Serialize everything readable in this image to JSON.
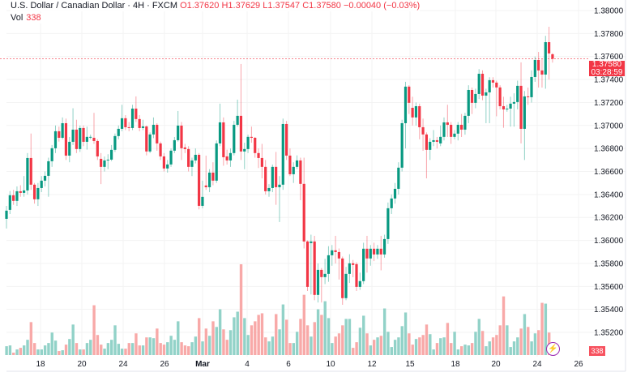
{
  "header": {
    "symbol": "U.S. Dollar / Canadian Dollar · 4H · FXCM",
    "open": "O1.37620",
    "high": "H1.37629",
    "low": "L1.37547",
    "close": "C1.37580",
    "change": "−0.00040 (−0.03%)",
    "vol_label": "Vol",
    "vol_value": "338"
  },
  "last_price": {
    "price": "1.37580",
    "countdown": "03:28:59"
  },
  "last_volume": "338",
  "colors": {
    "up": "#089981",
    "down": "#f23645",
    "vol_up": "#92d2c8",
    "vol_down": "#f8a9a8",
    "grid": "#f3f3f3",
    "price_line": "#f23645"
  },
  "icons": {
    "replay": "lightning-icon"
  },
  "chart_data": {
    "type": "candlestick",
    "title": "U.S. Dollar / Canadian Dollar · 4H · FXCM",
    "ylim": [
      1.3508,
      1.3809
    ],
    "y_ticks": [
      "1.38000",
      "1.37800",
      "1.37600",
      "1.37400",
      "1.37200",
      "1.37000",
      "1.36800",
      "1.36600",
      "1.36400",
      "1.36200",
      "1.36000",
      "1.35800",
      "1.35600",
      "1.35400",
      "1.35200"
    ],
    "x_ticks": [
      "18",
      "20",
      "24",
      "26",
      "Mar",
      "4",
      "6",
      "10",
      "12",
      "15",
      "18",
      "20",
      "24",
      "26"
    ],
    "grid": true,
    "ohlc": [
      [
        1.36188,
        1.363,
        1.36104,
        1.36259
      ],
      [
        1.36266,
        1.3643,
        1.3623,
        1.36393
      ],
      [
        1.36393,
        1.3644,
        1.3631,
        1.36344
      ],
      [
        1.36344,
        1.3647,
        1.363,
        1.36428
      ],
      [
        1.36428,
        1.3648,
        1.3638,
        1.36414
      ],
      [
        1.36414,
        1.3656,
        1.3638,
        1.36435
      ],
      [
        1.36435,
        1.3676,
        1.364,
        1.36717
      ],
      [
        1.36717,
        1.3693,
        1.3644,
        1.36485
      ],
      [
        1.36485,
        1.365,
        1.3632,
        1.36358
      ],
      [
        1.36358,
        1.365,
        1.363,
        1.36456
      ],
      [
        1.36456,
        1.3656,
        1.3642,
        1.3652
      ],
      [
        1.3652,
        1.366,
        1.3647,
        1.36562
      ],
      [
        1.36562,
        1.3672,
        1.3638,
        1.36689
      ],
      [
        1.36689,
        1.3683,
        1.3664,
        1.36802
      ],
      [
        1.36802,
        1.37,
        1.3676,
        1.3695
      ],
      [
        1.3695,
        1.3699,
        1.3686,
        1.36893
      ],
      [
        1.36893,
        1.3707,
        1.3688,
        1.3702
      ],
      [
        1.3702,
        1.3706,
        1.367,
        1.36738
      ],
      [
        1.36738,
        1.369,
        1.3668,
        1.36858
      ],
      [
        1.36858,
        1.3715,
        1.3683,
        1.36964
      ],
      [
        1.36964,
        1.3705,
        1.3676,
        1.36795
      ],
      [
        1.36795,
        1.37,
        1.3677,
        1.36978
      ],
      [
        1.36978,
        1.37,
        1.3682,
        1.36858
      ],
      [
        1.36858,
        1.3699,
        1.3679,
        1.36901
      ],
      [
        1.36901,
        1.3692,
        1.3688,
        1.36901
      ],
      [
        1.36893,
        1.3711,
        1.3684,
        1.36865
      ],
      [
        1.36865,
        1.3688,
        1.367,
        1.36731
      ],
      [
        1.3671,
        1.3676,
        1.3649,
        1.3664
      ],
      [
        1.3664,
        1.3673,
        1.366,
        1.36696
      ],
      [
        1.36696,
        1.3675,
        1.3662,
        1.36703
      ],
      [
        1.36703,
        1.3683,
        1.3669,
        1.36788
      ],
      [
        1.36788,
        1.3693,
        1.3677,
        1.36908
      ],
      [
        1.36908,
        1.37,
        1.3688,
        1.36971
      ],
      [
        1.36971,
        1.3718,
        1.3695,
        1.37063
      ],
      [
        1.37063,
        1.3709,
        1.3696,
        1.36985
      ],
      [
        1.36985,
        1.3703,
        1.3695,
        1.36978
      ],
      [
        1.36978,
        1.3718,
        1.3696,
        1.37147
      ],
      [
        1.37147,
        1.37253,
        1.3703,
        1.37056
      ],
      [
        1.37056,
        1.3709,
        1.3695,
        1.36978
      ],
      [
        1.36978,
        1.3705,
        1.3696,
        1.36992
      ],
      [
        1.36992,
        1.37,
        1.3674,
        1.36774
      ],
      [
        1.36774,
        1.3694,
        1.3676,
        1.36922
      ],
      [
        1.36922,
        1.3707,
        1.3689,
        1.37006
      ],
      [
        1.37006,
        1.3702,
        1.3678,
        1.36844
      ],
      [
        1.36844,
        1.3686,
        1.367,
        1.36731
      ],
      [
        1.36731,
        1.3676,
        1.366,
        1.36626
      ],
      [
        1.36626,
        1.367,
        1.3659,
        1.36661
      ],
      [
        1.36661,
        1.368,
        1.3664,
        1.36781
      ],
      [
        1.36781,
        1.369,
        1.3676,
        1.36872
      ],
      [
        1.36872,
        1.37126,
        1.3686,
        1.36999
      ],
      [
        1.36999,
        1.3703,
        1.367,
        1.36802
      ],
      [
        1.36809,
        1.3684,
        1.3676,
        1.36795
      ],
      [
        1.36795,
        1.3682,
        1.366,
        1.3664
      ],
      [
        1.3664,
        1.3672,
        1.3656,
        1.36696
      ],
      [
        1.36696,
        1.368,
        1.3667,
        1.36745
      ],
      [
        1.36745,
        1.3676,
        1.3627,
        1.36301
      ],
      [
        1.36301,
        1.3652,
        1.3628,
        1.36379
      ],
      [
        1.36478,
        1.36738,
        1.3644,
        1.36463
      ],
      [
        1.36463,
        1.3662,
        1.3642,
        1.3659
      ],
      [
        1.3659,
        1.3668,
        1.3648,
        1.3652
      ],
      [
        1.3652,
        1.3687,
        1.365,
        1.36844
      ],
      [
        1.36844,
        1.3719,
        1.3682,
        1.37027
      ],
      [
        1.37027,
        1.3707,
        1.3665,
        1.36724
      ],
      [
        1.36731,
        1.3679,
        1.3666,
        1.36696
      ],
      [
        1.36696,
        1.368,
        1.3664,
        1.3676
      ],
      [
        1.3676,
        1.3704,
        1.3674,
        1.37006
      ],
      [
        1.37006,
        1.37225,
        1.3699,
        1.37084
      ],
      [
        1.37084,
        1.37535,
        1.367,
        1.36774
      ],
      [
        1.36774,
        1.3685,
        1.3662,
        1.36795
      ],
      [
        1.36795,
        1.3692,
        1.3676,
        1.36901
      ],
      [
        1.36901,
        1.3699,
        1.3685,
        1.36893
      ],
      [
        1.36893,
        1.369,
        1.3672,
        1.3676
      ],
      [
        1.3676,
        1.368,
        1.3663,
        1.36717
      ],
      [
        1.36717,
        1.3684,
        1.3654,
        1.3664
      ],
      [
        1.3664,
        1.367,
        1.364,
        1.36428
      ],
      [
        1.36428,
        1.3649,
        1.3638,
        1.36456
      ],
      [
        1.36456,
        1.3666,
        1.3642,
        1.3664
      ],
      [
        1.3664,
        1.3677,
        1.3631,
        1.36463
      ],
      [
        1.36463,
        1.3656,
        1.3616,
        1.36485
      ],
      [
        1.36485,
        1.3706,
        1.3644,
        1.37013
      ],
      [
        1.37013,
        1.3704,
        1.367,
        1.36738
      ],
      [
        1.36738,
        1.368,
        1.3656,
        1.36576
      ],
      [
        1.36576,
        1.3668,
        1.365,
        1.3664
      ],
      [
        1.3664,
        1.3674,
        1.3662,
        1.36696
      ],
      [
        1.36696,
        1.3672,
        1.3635,
        1.36492
      ],
      [
        1.36492,
        1.3672,
        1.3593,
        1.35991
      ],
      [
        1.35991,
        1.36,
        1.3556,
        1.35596
      ],
      [
        1.35977,
        1.3605,
        1.3553,
        1.35991
      ],
      [
        1.35991,
        1.3604,
        1.3548,
        1.35526
      ],
      [
        1.35526,
        1.358,
        1.3546,
        1.35744
      ],
      [
        1.35744,
        1.3576,
        1.3546,
        1.35681
      ],
      [
        1.35681,
        1.3584,
        1.3562,
        1.35709
      ],
      [
        1.35709,
        1.3595,
        1.3564,
        1.35871
      ],
      [
        1.35871,
        1.3596,
        1.3578,
        1.35914
      ],
      [
        1.35914,
        1.3604,
        1.358,
        1.35899
      ],
      [
        1.35899,
        1.3593,
        1.3566,
        1.35843
      ],
      [
        1.35843,
        1.3586,
        1.3544,
        1.35498
      ],
      [
        1.35498,
        1.3577,
        1.3548,
        1.35709
      ],
      [
        1.35709,
        1.3588,
        1.3563,
        1.35801
      ],
      [
        1.35801,
        1.3583,
        1.3568,
        1.35787
      ],
      [
        1.35794,
        1.3581,
        1.3556,
        1.35596
      ],
      [
        1.35596,
        1.3572,
        1.3557,
        1.35646
      ],
      [
        1.35646,
        1.3598,
        1.3562,
        1.35928
      ],
      [
        1.35928,
        1.3604,
        1.3572,
        1.35843
      ],
      [
        1.35843,
        1.3596,
        1.3578,
        1.35928
      ],
      [
        1.35928,
        1.3598,
        1.3582,
        1.35878
      ],
      [
        1.35878,
        1.3596,
        1.3584,
        1.35928
      ],
      [
        1.35928,
        1.3604,
        1.3574,
        1.35878
      ],
      [
        1.35878,
        1.3605,
        1.3585,
        1.36012
      ],
      [
        1.36012,
        1.3633,
        1.3597,
        1.3628
      ],
      [
        1.3628,
        1.364,
        1.3623,
        1.36365
      ],
      [
        1.36365,
        1.365,
        1.3632,
        1.36449
      ],
      [
        1.36449,
        1.3668,
        1.364,
        1.36633
      ],
      [
        1.36633,
        1.3705,
        1.366,
        1.3702
      ],
      [
        1.3702,
        1.3738,
        1.368,
        1.37338
      ],
      [
        1.37338,
        1.3735,
        1.371,
        1.37197
      ],
      [
        1.37154,
        1.3725,
        1.37,
        1.3707
      ],
      [
        1.3707,
        1.372,
        1.37,
        1.37168
      ],
      [
        1.37168,
        1.3719,
        1.3688,
        1.36985
      ],
      [
        1.36985,
        1.3706,
        1.3678,
        1.36922
      ],
      [
        1.36922,
        1.3694,
        1.3654,
        1.36788
      ],
      [
        1.36788,
        1.3689,
        1.367,
        1.36858
      ],
      [
        1.36858,
        1.3696,
        1.3682,
        1.36872
      ],
      [
        1.36872,
        1.369,
        1.368,
        1.36858
      ],
      [
        1.36844,
        1.37,
        1.3682,
        1.36901
      ],
      [
        1.36901,
        1.3707,
        1.3687,
        1.37027
      ],
      [
        1.37027,
        1.3718,
        1.369,
        1.37006
      ],
      [
        1.37006,
        1.3703,
        1.3684,
        1.36901
      ],
      [
        1.36901,
        1.3696,
        1.3688,
        1.36929
      ],
      [
        1.36929,
        1.3703,
        1.3687,
        1.37006
      ],
      [
        1.37006,
        1.371,
        1.369,
        1.36964
      ],
      [
        1.36964,
        1.3711,
        1.3692,
        1.37084
      ],
      [
        1.37084,
        1.3735,
        1.3702,
        1.37309
      ],
      [
        1.37309,
        1.3733,
        1.371,
        1.37197
      ],
      [
        1.37197,
        1.3732,
        1.3715,
        1.37274
      ],
      [
        1.37274,
        1.3749,
        1.3723,
        1.3745
      ],
      [
        1.3745,
        1.3748,
        1.3722,
        1.3726
      ],
      [
        1.3726,
        1.3732,
        1.3702,
        1.37288
      ],
      [
        1.37288,
        1.3742,
        1.3702,
        1.37394
      ],
      [
        1.37394,
        1.3742,
        1.3733,
        1.37373
      ],
      [
        1.37373,
        1.3739,
        1.3708,
        1.37331
      ],
      [
        1.37331,
        1.3735,
        1.3714,
        1.37168
      ],
      [
        1.37168,
        1.3725,
        1.3698,
        1.3714
      ],
      [
        1.37147,
        1.3718,
        1.3712,
        1.37147
      ],
      [
        1.37147,
        1.3725,
        1.3699,
        1.3719
      ],
      [
        1.3719,
        1.3728,
        1.3699,
        1.37204
      ],
      [
        1.37204,
        1.3739,
        1.3714,
        1.37345
      ],
      [
        1.37345,
        1.37549,
        1.36844,
        1.36971
      ],
      [
        1.36971,
        1.373,
        1.367,
        1.37253
      ],
      [
        1.37253,
        1.3733,
        1.3718,
        1.37246
      ],
      [
        1.37246,
        1.3748,
        1.372,
        1.37422
      ],
      [
        1.37422,
        1.376,
        1.3738,
        1.3757
      ],
      [
        1.3757,
        1.3764,
        1.3733,
        1.37479
      ],
      [
        1.37479,
        1.3758,
        1.3733,
        1.37443
      ],
      [
        1.37443,
        1.3778,
        1.3732,
        1.37725
      ],
      [
        1.37725,
        1.37859,
        1.374,
        1.37627
      ],
      [
        1.3762,
        1.37629,
        1.37547,
        1.3758
      ]
    ],
    "volume": [
      770,
      840,
      210,
      490,
      630,
      840,
      1330,
      2870,
      1050,
      490,
      490,
      840,
      1050,
      1960,
      1260,
      350,
      420,
      910,
      1400,
      2660,
      1050,
      490,
      490,
      1050,
      1330,
      4340,
      1750,
      910,
      560,
      1050,
      1330,
      2590,
      980,
      560,
      560,
      1050,
      1050,
      1890,
      840,
      840,
      1540,
      1540,
      1470,
      2310,
      1050,
      910,
      1120,
      1680,
      1330,
      2940,
      1120,
      840,
      770,
      1120,
      1610,
      3220,
      1190,
      2310,
      1680,
      2940,
      2450,
      3990,
      2240,
      1330,
      2170,
      3290,
      3780,
      7910,
      3220,
      1750,
      2590,
      2940,
      3500,
      3640,
      1540,
      1190,
      1610,
      3570,
      2240,
      4410,
      3080,
      1050,
      1050,
      2030,
      3150,
      5250,
      2590,
      1610,
      2870,
      3990,
      3500,
      4690,
      3220,
      1050,
      1610,
      1890,
      2590,
      3150,
      3150,
      630,
      1120,
      2380,
      3430,
      1890,
      840,
      1330,
      1540,
      1680,
      4060,
      2030,
      700,
      1330,
      1540,
      2520,
      3710,
      1890,
      910,
      1400,
      1540,
      1750,
      2660,
      1820,
      490,
      1050,
      1470,
      1540,
      2800,
      1050,
      2030,
      490,
      770,
      910,
      840,
      1050,
      2030,
      3150,
      2100,
      770,
      1190,
      1540,
      1750,
      2590,
      5110,
      2590,
      700,
      1190,
      1540,
      2310,
      3570,
      2450,
      1190,
      1890,
      2170,
      4550,
      4480,
      1960,
      338
    ]
  }
}
